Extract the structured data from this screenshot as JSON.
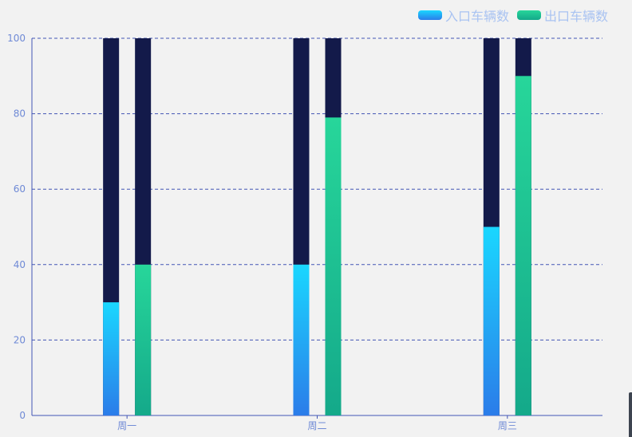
{
  "legend": {
    "items": [
      {
        "label": "入口车辆数",
        "key": "in"
      },
      {
        "label": "出口车辆数",
        "key": "out"
      }
    ]
  },
  "colors": {
    "in_top": "#1ad7ff",
    "in_bottom": "#2b7ce9",
    "out_top": "#27d69a",
    "out_bottom": "#14a98a",
    "track": "#131a4a",
    "axis": "#4355b5",
    "grid": "#4355b5",
    "tick_text": "#6f8ad6",
    "legend_text": "#a9c3f2"
  },
  "chart_data": {
    "type": "bar",
    "categories": [
      "周一",
      "周二",
      "周三"
    ],
    "series": [
      {
        "name": "入口车辆数",
        "values": [
          30,
          40,
          50
        ]
      },
      {
        "name": "出口车辆数",
        "values": [
          40,
          79,
          90
        ]
      }
    ],
    "background_max": 100,
    "ylim": [
      0,
      100
    ],
    "yticks": [
      0,
      20,
      40,
      60,
      80,
      100
    ],
    "grid": true,
    "grid_style": "dashed",
    "legend_position": "top-right",
    "title": "",
    "xlabel": "",
    "ylabel": ""
  }
}
